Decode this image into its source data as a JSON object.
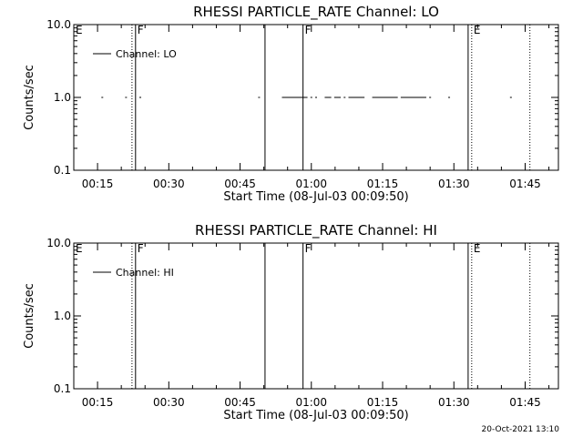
{
  "chart_data": [
    {
      "type": "line",
      "title": "RHESSI PARTICLE_RATE Channel: LO",
      "xlabel": "Start Time (08-Jul-03 00:09:50)",
      "ylabel": "Counts/sec",
      "yscale": "log",
      "ylim": [
        0.1,
        10.0
      ],
      "y_tick_labels": [
        "10.0",
        "1.0",
        "0.1"
      ],
      "x_tick_labels": [
        "00:15",
        "00:30",
        "00:45",
        "01:00",
        "01:15",
        "01:30",
        "01:45"
      ],
      "grid": false,
      "legend": {
        "placement": "top-left",
        "entries": [
          "Channel: LO"
        ]
      },
      "series": [
        {
          "name": "Channel: LO",
          "value": 1.0,
          "segments": [
            [
              "00:16",
              "00:16"
            ],
            [
              "00:21",
              "00:21"
            ],
            [
              "00:24",
              "00:24"
            ],
            [
              "00:49",
              "00:49"
            ],
            [
              "00:54",
              "00:59"
            ],
            [
              "01:00",
              "01:00"
            ],
            [
              "01:01",
              "01:01"
            ],
            [
              "01:03",
              "01:04"
            ],
            [
              "01:05",
              "01:06"
            ],
            [
              "01:07",
              "01:07"
            ],
            [
              "01:08",
              "01:11"
            ],
            [
              "01:13",
              "01:18"
            ],
            [
              "01:19",
              "01:24"
            ],
            [
              "01:25",
              "01:25"
            ],
            [
              "01:29",
              "01:29"
            ],
            [
              "01:42",
              "01:42"
            ]
          ]
        }
      ],
      "events": [
        {
          "time": "00:22:15",
          "style": "dotted",
          "flag": ""
        },
        {
          "time": "00:23:00",
          "style": "solid",
          "flag": "F"
        },
        {
          "time": "00:50:15",
          "style": "solid",
          "flag": ""
        },
        {
          "time": "00:58:15",
          "style": "solid",
          "flag": "F"
        },
        {
          "time": "01:33:00",
          "style": "solid",
          "flag": ""
        },
        {
          "time": "01:33:45",
          "style": "dotted",
          "flag": "E"
        },
        {
          "time": "01:46:00",
          "style": "dotted",
          "flag": ""
        }
      ],
      "corner_flag": "E"
    },
    {
      "type": "line",
      "title": "RHESSI PARTICLE_RATE Channel: HI",
      "xlabel": "Start Time (08-Jul-03 00:09:50)",
      "ylabel": "Counts/sec",
      "yscale": "log",
      "ylim": [
        0.1,
        10.0
      ],
      "y_tick_labels": [
        "10.0",
        "1.0",
        "0.1"
      ],
      "x_tick_labels": [
        "00:15",
        "00:30",
        "00:45",
        "01:00",
        "01:15",
        "01:30",
        "01:45"
      ],
      "grid": false,
      "legend": {
        "placement": "top-left",
        "entries": [
          "Channel: HI"
        ]
      },
      "series": [
        {
          "name": "Channel: HI",
          "value": 1.0,
          "segments": []
        }
      ],
      "events": [
        {
          "time": "00:22:15",
          "style": "dotted",
          "flag": ""
        },
        {
          "time": "00:23:00",
          "style": "solid",
          "flag": "F"
        },
        {
          "time": "00:50:15",
          "style": "solid",
          "flag": ""
        },
        {
          "time": "00:58:15",
          "style": "solid",
          "flag": "F"
        },
        {
          "time": "01:33:00",
          "style": "solid",
          "flag": ""
        },
        {
          "time": "01:33:45",
          "style": "dotted",
          "flag": "E"
        },
        {
          "time": "01:46:00",
          "style": "dotted",
          "flag": ""
        }
      ],
      "corner_flag": "E"
    }
  ],
  "footer": {
    "timestamp": "20-Oct-2021 13:10"
  }
}
